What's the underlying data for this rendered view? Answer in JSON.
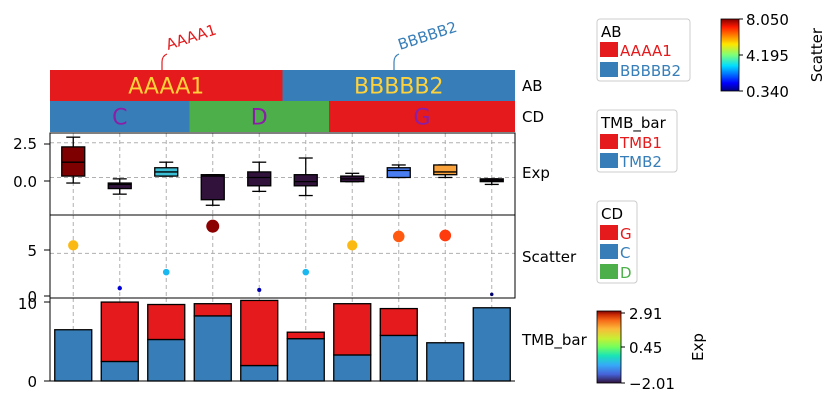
{
  "chart_data": {
    "type": "oncoprint",
    "annotations": {
      "AB": {
        "label": "AB",
        "top_labels": [
          "AAAA1",
          "BBBBB2"
        ],
        "segments": [
          {
            "label": "AAAA1",
            "from": 0,
            "to": 5,
            "color": "#e41a1c"
          },
          {
            "label": "BBBBB2",
            "from": 5,
            "to": 10,
            "color": "#377eb8"
          }
        ]
      },
      "CD": {
        "label": "CD",
        "segments": [
          {
            "label": "C",
            "from": 0,
            "to": 3,
            "color": "#377eb8"
          },
          {
            "label": "D",
            "from": 3,
            "to": 6,
            "color": "#4daf4a"
          },
          {
            "label": "G",
            "from": 6,
            "to": 10,
            "color": "#e41a1c"
          }
        ]
      }
    },
    "exp": {
      "label": "Exp",
      "yticks": [
        "2.5",
        "0.0"
      ],
      "ylim": [
        -2.7,
        3.2
      ],
      "boxes": [
        {
          "whislo": -0.4,
          "q1": 0.1,
          "med": 1.1,
          "q3": 2.2,
          "whishi": 2.9,
          "color": "#7f0000"
        },
        {
          "whislo": -1.2,
          "q1": -0.8,
          "med": -0.5,
          "q3": -0.4,
          "whishi": -0.1,
          "color": "#30123b"
        },
        {
          "whislo": 0.1,
          "q1": 0.1,
          "med": 0.4,
          "q3": 0.7,
          "whishi": 1.1,
          "color": "#3bbfd6"
        },
        {
          "whislo": -2.0,
          "q1": -1.6,
          "med": 0.1,
          "q3": 0.2,
          "whishi": 0.2,
          "color": "#30123b"
        },
        {
          "whislo": -1.0,
          "q1": -0.6,
          "med": 0.0,
          "q3": 0.4,
          "whishi": 1.1,
          "color": "#30123b"
        },
        {
          "whislo": -1.3,
          "q1": -0.6,
          "med": -0.3,
          "q3": 0.2,
          "whishi": 1.4,
          "color": "#30123b"
        },
        {
          "whislo": -0.3,
          "q1": -0.3,
          "med": -0.1,
          "q3": 0.1,
          "whishi": 0.3,
          "color": "#30123b"
        },
        {
          "whislo": 0.0,
          "q1": 0.0,
          "med": 0.5,
          "q3": 0.7,
          "whishi": 0.9,
          "color": "#4a7ef0"
        },
        {
          "whislo": 0.0,
          "q1": 0.2,
          "med": 0.4,
          "q3": 0.9,
          "whishi": 0.9,
          "color": "#f9a13a"
        },
        {
          "whislo": -0.5,
          "q1": -0.3,
          "med": -0.2,
          "q3": -0.1,
          "whishi": -0.1,
          "color": "#30123b"
        }
      ]
    },
    "scatter": {
      "label": "Scatter",
      "yticks": [
        "5",
        "0"
      ],
      "ylim": [
        0,
        9.3
      ],
      "points": [
        {
          "y": 5.9,
          "color": "#fbb914"
        },
        {
          "y": 1.1,
          "color": "#0000d8"
        },
        {
          "y": 2.9,
          "color": "#1ab8f0"
        },
        {
          "y": 8.05,
          "color": "#8b0000"
        },
        {
          "y": 0.9,
          "color": "#0000b0"
        },
        {
          "y": 2.9,
          "color": "#1ab8f0"
        },
        {
          "y": 5.9,
          "color": "#fbb914"
        },
        {
          "y": 6.9,
          "color": "#ff5a10"
        },
        {
          "y": 7.0,
          "color": "#ff3a0c"
        },
        {
          "y": 0.4,
          "color": "#00006e"
        }
      ]
    },
    "tmb_bar": {
      "label": "TMB_bar",
      "yticks": [
        "10",
        "0"
      ],
      "ylim": [
        0,
        10.2
      ],
      "series_colors": {
        "TMB1": "#e41a1c",
        "TMB2": "#377eb8"
      },
      "bars": [
        {
          "TMB2": 6.3,
          "TMB1": 0.0
        },
        {
          "TMB2": 2.4,
          "TMB1": 7.3
        },
        {
          "TMB2": 5.1,
          "TMB1": 4.3
        },
        {
          "TMB2": 8.0,
          "TMB1": 1.5
        },
        {
          "TMB2": 1.9,
          "TMB1": 8.0
        },
        {
          "TMB2": 5.2,
          "TMB1": 0.8
        },
        {
          "TMB2": 3.2,
          "TMB1": 6.3
        },
        {
          "TMB2": 5.6,
          "TMB1": 3.3
        },
        {
          "TMB2": 4.7,
          "TMB1": 0.0
        },
        {
          "TMB2": 9.0,
          "TMB1": 0.0
        }
      ]
    },
    "legends": [
      {
        "title": "AB",
        "items": [
          {
            "label": "AAAA1",
            "color": "#e41a1c"
          },
          {
            "label": "BBBBB2",
            "color": "#377eb8"
          }
        ]
      },
      {
        "title": "TMB_bar",
        "items": [
          {
            "label": "TMB1",
            "color": "#e41a1c"
          },
          {
            "label": "TMB2",
            "color": "#377eb8"
          }
        ]
      },
      {
        "title": "CD",
        "items": [
          {
            "label": "G",
            "color": "#e41a1c"
          },
          {
            "label": "C",
            "color": "#377eb8"
          },
          {
            "label": "D",
            "color": "#4daf4a"
          }
        ]
      }
    ],
    "colorbars": [
      {
        "label": "Scatter",
        "ticks": [
          "8.050",
          "4.195",
          "0.340"
        ]
      },
      {
        "label": "Exp",
        "ticks": [
          "2.91",
          "0.45",
          "−2.01"
        ]
      }
    ]
  }
}
